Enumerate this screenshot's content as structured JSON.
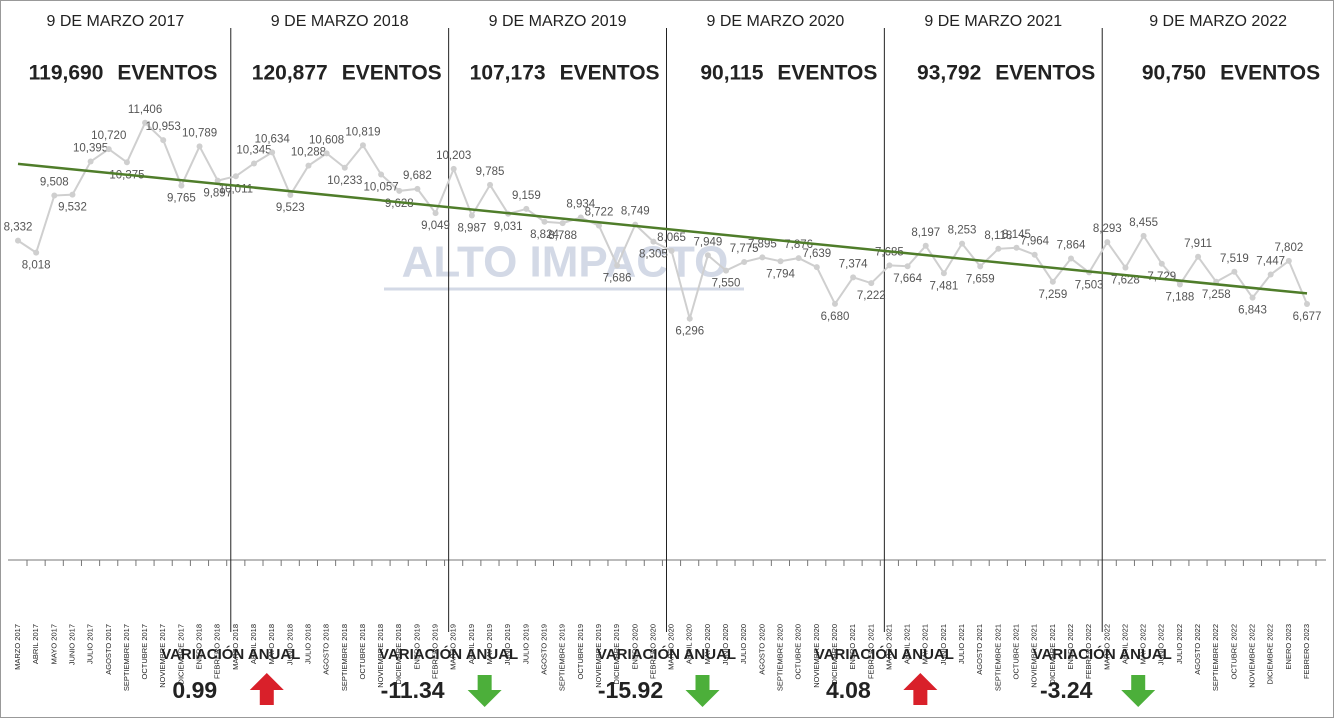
{
  "chart_data": {
    "type": "line",
    "categories": [
      "MARZO 2017",
      "ABRIL 2017",
      "MAYO 2017",
      "JUNIO 2017",
      "JULIO 2017",
      "AGOSTO 2017",
      "SEPTIEMBRE 2017",
      "OCTUBRE 2017",
      "NOVIEMBRE 2017",
      "DICIEMBRE 2017",
      "ENERO 2018",
      "FEBRERO 2018",
      "MARZO 2018",
      "ABRIL 2018",
      "MAYO 2018",
      "JUNIO 2018",
      "JULIO 2018",
      "AGOSTO 2018",
      "SEPTIEMBRE 2018",
      "OCTUBRE 2018",
      "NOVIEMBRE 2018",
      "DICIEMBRE 2018",
      "ENERO 2019",
      "FEBRERO 2019",
      "MARZO 2019",
      "ABRIL 2019",
      "MAYO 2019",
      "JUNIO 2019",
      "JULIO 2019",
      "AGOSTO 2019",
      "SEPTIEMBRE 2019",
      "OCTUBRE 2019",
      "NOVIEMBRE 2019",
      "DICIEMBRE 2019",
      "ENERO 2020",
      "FEBRERO 2020",
      "MARZO 2020",
      "ABRIL 2020",
      "MAYO 2020",
      "JUNIO 2020",
      "JULIO 2020",
      "AGOSTO 2020",
      "SEPTIEMBRE 2020",
      "OCTUBRE 2020",
      "NOVIEMBRE 2020",
      "DICIEMBRE 2020",
      "ENERO 2021",
      "FEBRERO 2021",
      "MARZO 2021",
      "ABRIL 2021",
      "MAYO 2021",
      "JUNIO 2021",
      "JULIO 2021",
      "AGOSTO 2021",
      "SEPTIEMBRE 2021",
      "OCTUBRE 2021",
      "NOVIEMBRE 2021",
      "DICIEMBRE 2021",
      "ENERO 2022",
      "FEBRERO 2022",
      "MARZO 2022",
      "ABRIL 2022",
      "MAYO 2022",
      "JUNIO 2022",
      "JULIO 2022",
      "AGOSTO 2022",
      "SEPTIEMBRE 2022",
      "OCTUBRE 2022",
      "NOVIEMBRE 2022",
      "DICIEMBRE 2022",
      "ENERO 2023",
      "FEBRERO 2023"
    ],
    "values": [
      8332,
      8018,
      9508,
      9532,
      10395,
      10720,
      10375,
      11406,
      10953,
      9765,
      10789,
      9897,
      10011,
      10345,
      10634,
      9523,
      10288,
      10608,
      10233,
      10819,
      10057,
      9628,
      9682,
      9049,
      10203,
      8987,
      9785,
      9031,
      9159,
      8824,
      8788,
      8934,
      8722,
      7686,
      8749,
      8305,
      8065,
      6296,
      7949,
      7550,
      7775,
      7895,
      7794,
      7876,
      7639,
      6680,
      7374,
      7222,
      7685,
      7664,
      8197,
      7481,
      8253,
      7659,
      8118,
      8145,
      7964,
      7259,
      7864,
      7503,
      8293,
      7628,
      8455,
      7729,
      7188,
      7911,
      7258,
      7519,
      6843,
      7447,
      7802,
      6677
    ],
    "value_labels": [
      "8,332",
      "8,018",
      "9,508",
      "9,532",
      "10,395",
      "10,720",
      "10,375",
      "11,406",
      "10,953",
      "9,765",
      "10,789",
      "9,897",
      "10,011",
      "10,345",
      "10,634",
      "9,523",
      "10,288",
      "10,608",
      "10,233",
      "10,819",
      "10,057",
      "9,628",
      "9,682",
      "9,049",
      "10,203",
      "8,987",
      "9,785",
      "9,031",
      "9,159",
      "8,824",
      "8,788",
      "8,934",
      "8,722",
      "7,686",
      "8,749",
      "8,305",
      "8,065",
      "6,296",
      "7,949",
      "7,550",
      "7,775",
      "7,895",
      "7,794",
      "7,876",
      "7,639",
      "6,680",
      "7,374",
      "7,222",
      "7,685",
      "7,664",
      "8,197",
      "7,481",
      "8,253",
      "7,659",
      "8,118",
      "8,145",
      "7,964",
      "7,259",
      "7,864",
      "7,503",
      "8,293",
      "7,628",
      "8,455",
      "7,729",
      "7,188",
      "7,911",
      "7,258",
      "7,519",
      "6,843",
      "7,447",
      "7,802",
      "6,677"
    ],
    "color": "#cfcfcf",
    "trend_color": "#4f7d2a",
    "ylim": [
      0,
      12000
    ],
    "watermark": "ALTO IMPACTO"
  },
  "periods": [
    {
      "date": "9 DE MARZO 2017",
      "total": {
        "value": 119690,
        "label": "119,690"
      }
    },
    {
      "date": "9 DE MARZO 2018",
      "total": {
        "value": 120877,
        "label": "120,877"
      }
    },
    {
      "date": "9 DE MARZO 2019",
      "total": {
        "value": 107173,
        "label": "107,173"
      }
    },
    {
      "date": "9 DE MARZO 2020",
      "total": {
        "value": 90115,
        "label": "90,115"
      }
    },
    {
      "date": "9 DE MARZO 2021",
      "total": {
        "value": 93792,
        "label": "93,792"
      }
    },
    {
      "date": "9 DE MARZO 2022",
      "total": {
        "value": 90750,
        "label": "90,750"
      }
    }
  ],
  "events_word": "EVENTOS",
  "variation_label": "VARIACIÓN ANUAL",
  "variations": [
    0.99,
    -11.34,
    -15.92,
    4.08,
    -3.24
  ]
}
